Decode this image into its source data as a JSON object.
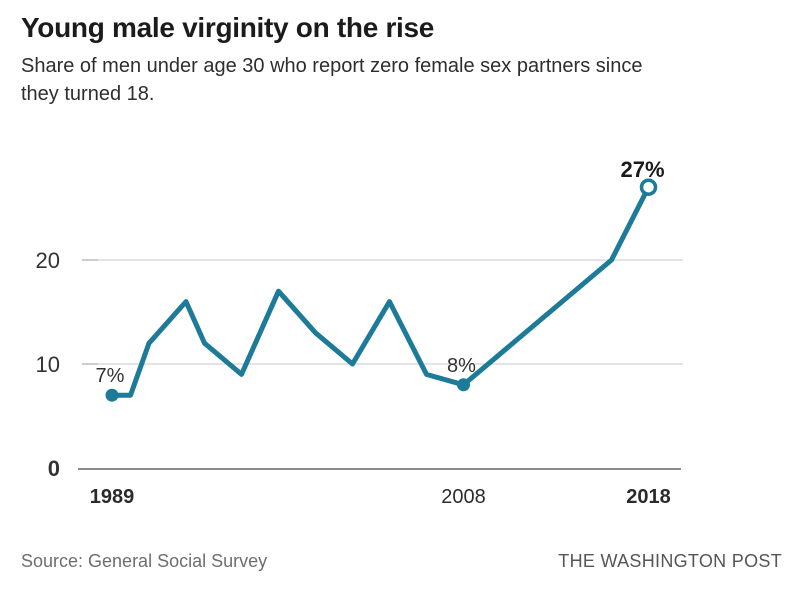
{
  "header": {
    "title": "Young male virginity on the rise",
    "subtitle_line1": "Share of men under age 30 who report zero female sex partners since",
    "subtitle_line2": "they turned 18."
  },
  "footer": {
    "source": "Source: General Social Survey",
    "brand": "THE WASHINGTON POST"
  },
  "colors": {
    "line": "#1d7a99",
    "grid": "#dcdcdc",
    "tick": "#c2c2c2",
    "axis": "#8c8c8c",
    "title_text": "#1b1b1b",
    "label_text": "#333333",
    "muted_text": "#6e6e6e"
  },
  "chart_data": {
    "type": "line",
    "title": "Young male virginity on the rise",
    "subtitle": "Share of men under age 30 who report zero female sex partners since they turned 18.",
    "x": [
      1989,
      1990,
      1991,
      1993,
      1994,
      1996,
      1998,
      2000,
      2002,
      2004,
      2006,
      2008,
      2016,
      2018
    ],
    "values": [
      7,
      7,
      12,
      16,
      12,
      9,
      17,
      13,
      10,
      16,
      9,
      8,
      20,
      27
    ],
    "xlabel": "",
    "ylabel": "",
    "xlim": [
      1987,
      2020
    ],
    "ylim": [
      0,
      29
    ],
    "yticks": [
      0,
      10,
      20
    ],
    "xticks": [
      {
        "x": 1989,
        "label": "1989",
        "bold": true
      },
      {
        "x": 2008,
        "label": "2008",
        "bold": false
      },
      {
        "x": 2018,
        "label": "2018",
        "bold": true
      }
    ],
    "annotations": [
      {
        "x": 1989,
        "y": 7,
        "label": "7%",
        "marker": "filled",
        "bold": false
      },
      {
        "x": 2008,
        "y": 8,
        "label": "8%",
        "marker": "filled",
        "bold": false
      },
      {
        "x": 2018,
        "y": 27,
        "label": "27%",
        "marker": "open",
        "bold": true
      }
    ],
    "grid": "horizontal",
    "legend": "none",
    "line_color": "#1d7a99"
  }
}
